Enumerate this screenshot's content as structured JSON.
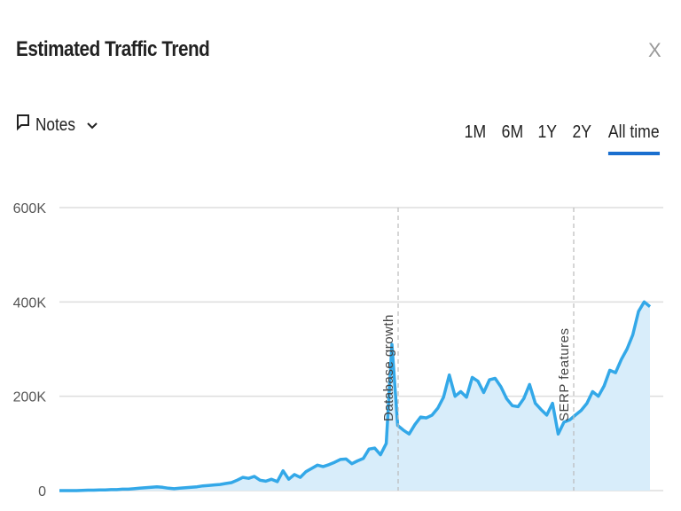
{
  "header": {
    "title": "Estimated Traffic Trend",
    "close_label": "X"
  },
  "notes": {
    "label": "Notes",
    "icon": "comment-icon"
  },
  "tabs": [
    {
      "label": "1M",
      "active": false
    },
    {
      "label": "6M",
      "active": false
    },
    {
      "label": "1Y",
      "active": false
    },
    {
      "label": "2Y",
      "active": false
    },
    {
      "label": "All time",
      "active": true
    }
  ],
  "colors": {
    "line": "#33a8e8",
    "fill": "#d8edfa",
    "accent": "#1a6fcf",
    "grid": "#dddddd"
  },
  "chart_data": {
    "type": "area",
    "title": "Estimated Traffic Trend",
    "xlabel": "",
    "ylabel": "",
    "ylim": [
      0,
      600000
    ],
    "yticks": [
      0,
      200000,
      400000,
      600000
    ],
    "ytick_labels": [
      "0",
      "200K",
      "400K",
      "600K"
    ],
    "grid": true,
    "values": [
      0,
      0,
      0,
      0,
      500,
      1000,
      1000,
      1500,
      1500,
      2000,
      2000,
      3000,
      3000,
      4000,
      5000,
      6000,
      7000,
      8000,
      7000,
      5000,
      4000,
      5000,
      6000,
      7000,
      8000,
      10000,
      11000,
      12000,
      13000,
      15000,
      17000,
      22000,
      28000,
      26000,
      30000,
      22000,
      20000,
      24000,
      19000,
      42000,
      24000,
      34000,
      28000,
      40000,
      47000,
      54000,
      51000,
      55000,
      60000,
      66000,
      67000,
      57000,
      63000,
      68000,
      88000,
      90000,
      76000,
      100000,
      310000,
      138000,
      128000,
      120000,
      140000,
      156000,
      154000,
      160000,
      175000,
      198000,
      245000,
      200000,
      210000,
      198000,
      240000,
      232000,
      208000,
      235000,
      238000,
      220000,
      195000,
      180000,
      178000,
      195000,
      225000,
      185000,
      172000,
      160000,
      185000,
      120000,
      145000,
      150000,
      160000,
      170000,
      185000,
      210000,
      200000,
      222000,
      255000,
      250000,
      278000,
      300000,
      330000,
      380000,
      400000,
      390000
    ],
    "annotations": [
      {
        "label": "Database growth"
      },
      {
        "label": "SERP features"
      }
    ]
  }
}
